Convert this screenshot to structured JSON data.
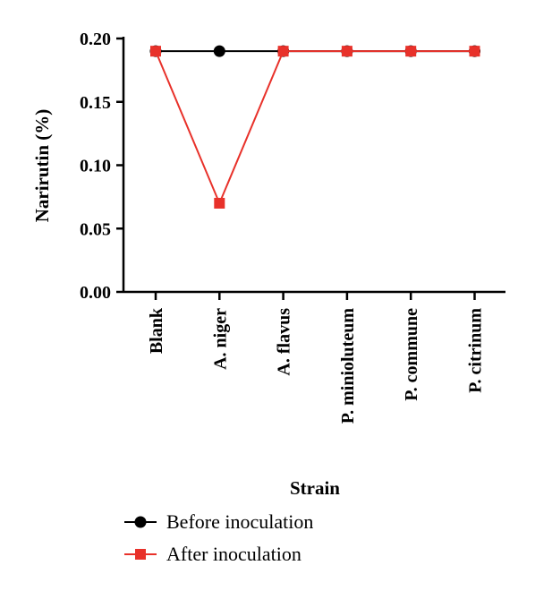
{
  "chart_data": {
    "type": "line",
    "categories": [
      "Blank",
      "A. niger",
      "A. flavus",
      "P. minioluteum",
      "P. commune",
      "P. citrinum"
    ],
    "series": [
      {
        "name": "Before inoculation",
        "values": [
          0.19,
          0.19,
          0.19,
          0.19,
          0.19,
          0.19
        ],
        "color": "#000000",
        "marker": "circle"
      },
      {
        "name": "After inoculation",
        "values": [
          0.19,
          0.07,
          0.19,
          0.19,
          0.19,
          0.19
        ],
        "color": "#e8312a",
        "marker": "square"
      }
    ],
    "ylabel": "Narirutin (%)",
    "xlabel": "Strain",
    "ylim": [
      0,
      0.2
    ],
    "yticks": [
      "0.00",
      "0.05",
      "0.10",
      "0.15",
      "0.20"
    ],
    "grid": false,
    "legend_position": "bottom-left"
  }
}
